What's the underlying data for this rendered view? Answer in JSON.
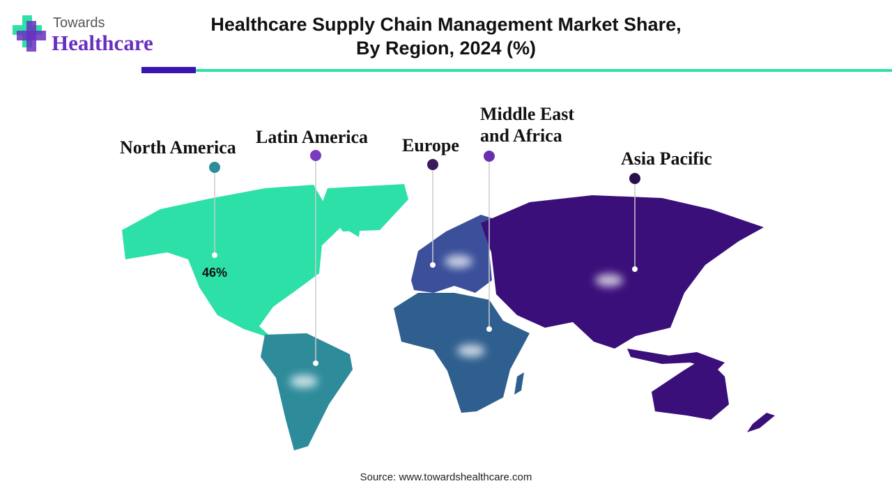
{
  "logo": {
    "line1": "Towards",
    "line2": "Healthcare"
  },
  "title_lines": [
    "Healthcare Supply Chain Management Market Share,",
    "By Region, 2024 (%)"
  ],
  "regions": [
    {
      "name": "North America",
      "share": "46%"
    },
    {
      "name": "Latin America"
    },
    {
      "name": "Europe"
    },
    {
      "name": "Middle East and Africa"
    },
    {
      "name": "Asia Pacific"
    }
  ],
  "source": "Source: www.towardshealthcare.com"
}
